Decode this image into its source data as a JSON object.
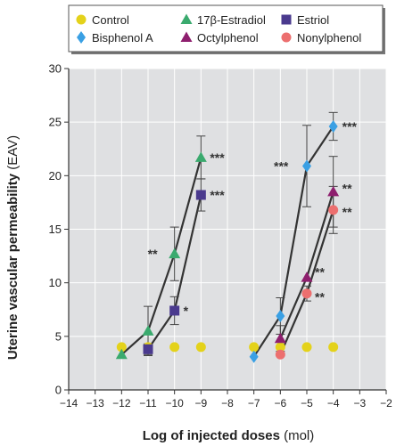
{
  "chart_data": {
    "type": "line",
    "xlabel_bold": "Log of injected doses",
    "xlabel_unit": " (mol)",
    "ylabel_bold": "Uterine vascular permeability",
    "ylabel_unit": " (EAV)",
    "xlim": [
      -14,
      -2
    ],
    "ylim": [
      0,
      30
    ],
    "xticks": [
      -14,
      -13,
      -12,
      -11,
      -10,
      -9,
      -8,
      -7,
      -6,
      -5,
      -4,
      -3,
      -2
    ],
    "yticks": [
      0,
      5,
      10,
      15,
      20,
      25,
      30
    ],
    "grid": true,
    "legend_position": "top",
    "colors": {
      "plot_bg": "#dfe0e2",
      "grid": "#ffffff",
      "line": "#333333",
      "legend_border": "#555555"
    },
    "legend_order": [
      "control",
      "estradiol",
      "estriol",
      "bisphenol",
      "octylphenol",
      "nonylphenol"
    ],
    "series": [
      {
        "key": "control",
        "name": "Control",
        "marker": "circle",
        "color": "#e4d21a",
        "connected": false,
        "x": [
          -12,
          -11,
          -10,
          -9,
          -7,
          -6,
          -5,
          -4
        ],
        "y": [
          4,
          4,
          4,
          4,
          4,
          4,
          4,
          4
        ],
        "err": [
          0,
          0,
          0,
          0,
          0,
          0,
          0,
          0
        ],
        "sig": [
          "",
          "",
          "",
          "",
          "",
          "",
          "",
          ""
        ]
      },
      {
        "key": "estradiol",
        "name": "17β-Estradiol",
        "marker": "triangle",
        "color": "#3aaa6e",
        "connected": true,
        "x": [
          -12,
          -11,
          -10,
          -9
        ],
        "y": [
          3.3,
          5.5,
          12.7,
          21.7
        ],
        "err": [
          0,
          2.3,
          2.5,
          2
        ],
        "sig": [
          "",
          "",
          "**",
          "***"
        ]
      },
      {
        "key": "estriol",
        "name": "Estriol",
        "marker": "square",
        "color": "#4a3a8e",
        "connected": true,
        "x": [
          -11,
          -10,
          -9
        ],
        "y": [
          3.8,
          7.4,
          18.2
        ],
        "err": [
          0.5,
          1.3,
          1.5
        ],
        "sig": [
          "",
          "*",
          "***"
        ]
      },
      {
        "key": "bisphenol",
        "name": "Bisphenol A",
        "marker": "diamond",
        "color": "#3aa0e4",
        "connected": true,
        "x": [
          -7,
          -6,
          -5,
          -4
        ],
        "y": [
          3.1,
          6.9,
          20.9,
          24.6
        ],
        "err": [
          0,
          1.7,
          3.8,
          1.3
        ],
        "sig": [
          "",
          "",
          "***",
          "***"
        ]
      },
      {
        "key": "octylphenol",
        "name": "Octylphenol",
        "marker": "triangle",
        "color": "#8e1f6e",
        "connected": true,
        "x": [
          -6,
          -5,
          -4
        ],
        "y": [
          4.8,
          10.5,
          18.5
        ],
        "err": [
          1.2,
          0,
          3.3
        ],
        "sig": [
          "",
          "**",
          "**"
        ]
      },
      {
        "key": "nonylphenol",
        "name": "Nonylphenol",
        "marker": "circle",
        "color": "#ec6f6f",
        "connected": true,
        "x": [
          -6,
          -5,
          -4
        ],
        "y": [
          3.3,
          9,
          16.8
        ],
        "err": [
          0,
          0.7,
          2.2
        ],
        "sig": [
          "",
          "**",
          "**"
        ]
      }
    ]
  }
}
